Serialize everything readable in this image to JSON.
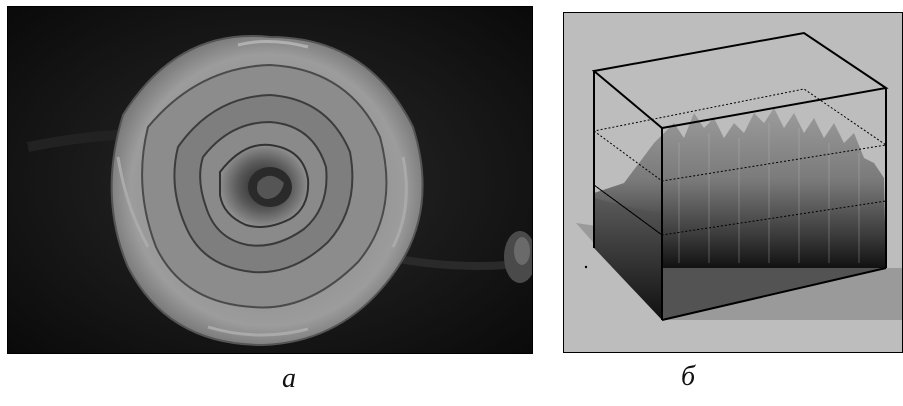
{
  "figure": {
    "panels": [
      {
        "id": "a",
        "caption": "а",
        "content": "rose-photo",
        "colors": {
          "background": "#101010",
          "petal_light": "#9a9a9a",
          "petal_mid": "#7a7a7a",
          "petal_dark": "#3a3a3a"
        }
      },
      {
        "id": "б",
        "caption": "б",
        "content": "3d-intensity-surface-box",
        "colors": {
          "background": "#bdbdbd",
          "box_edge": "#000000",
          "surface_light": "#9e9e9e",
          "surface_dark": "#1a1a1a",
          "floor_shadow": "#9a9a9a"
        }
      }
    ]
  }
}
